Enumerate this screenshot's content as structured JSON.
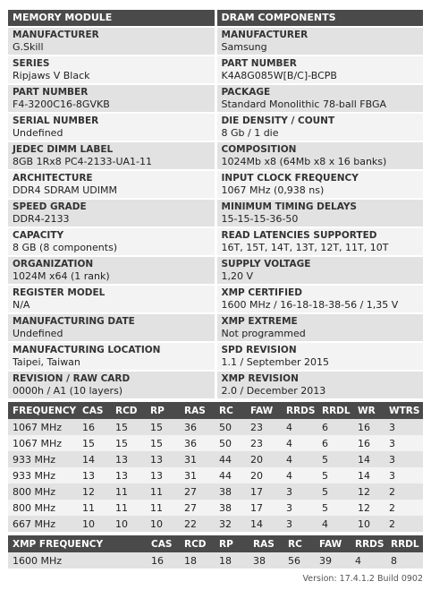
{
  "left_header": "MEMORY MODULE",
  "right_header": "DRAM COMPONENTS",
  "left_items": [
    {
      "label": "MANUFACTURER",
      "value": "G.Skill"
    },
    {
      "label": "SERIES",
      "value": "Ripjaws V Black"
    },
    {
      "label": "PART NUMBER",
      "value": "F4-3200C16-8GVKB"
    },
    {
      "label": "SERIAL NUMBER",
      "value": "Undefined"
    },
    {
      "label": "JEDEC DIMM LABEL",
      "value": "8GB 1Rx8 PC4-2133-UA1-11"
    },
    {
      "label": "ARCHITECTURE",
      "value": "DDR4 SDRAM UDIMM"
    },
    {
      "label": "SPEED GRADE",
      "value": "DDR4-2133"
    },
    {
      "label": "CAPACITY",
      "value": "8 GB (8 components)"
    },
    {
      "label": "ORGANIZATION",
      "value": "1024M x64 (1 rank)"
    },
    {
      "label": "REGISTER MODEL",
      "value": "N/A"
    },
    {
      "label": "MANUFACTURING DATE",
      "value": "Undefined"
    },
    {
      "label": "MANUFACTURING LOCATION",
      "value": "Taipei, Taiwan"
    },
    {
      "label": "REVISION / RAW CARD",
      "value": "0000h / A1 (10 layers)"
    }
  ],
  "right_items": [
    {
      "label": "MANUFACTURER",
      "value": "Samsung"
    },
    {
      "label": "PART NUMBER",
      "value": "K4A8G085W[B/C]-BCPB"
    },
    {
      "label": "PACKAGE",
      "value": "Standard Monolithic 78-ball FBGA"
    },
    {
      "label": "DIE DENSITY / COUNT",
      "value": "8 Gb / 1 die"
    },
    {
      "label": "COMPOSITION",
      "value": "1024Mb x8 (64Mb x8 x 16 banks)"
    },
    {
      "label": "INPUT CLOCK FREQUENCY",
      "value": "1067 MHz (0,938 ns)"
    },
    {
      "label": "MINIMUM TIMING DELAYS",
      "value": "15-15-15-36-50"
    },
    {
      "label": "READ LATENCIES SUPPORTED",
      "value": "16T, 15T, 14T, 13T, 12T, 11T, 10T"
    },
    {
      "label": "SUPPLY VOLTAGE",
      "value": "1,20 V"
    },
    {
      "label": "XMP CERTIFIED",
      "value": "1600 MHz / 16-18-18-38-56 / 1,35 V"
    },
    {
      "label": "XMP EXTREME",
      "value": "Not programmed"
    },
    {
      "label": "SPD REVISION",
      "value": "1.1 / September 2015"
    },
    {
      "label": "XMP REVISION",
      "value": "2.0 / December 2013"
    }
  ],
  "timing_table": {
    "headers": [
      "FREQUENCY",
      "CAS",
      "RCD",
      "RP",
      "RAS",
      "RC",
      "FAW",
      "RRDS",
      "RRDL",
      "WR",
      "WTRS"
    ],
    "rows": [
      [
        "1067 MHz",
        "16",
        "15",
        "15",
        "36",
        "50",
        "23",
        "4",
        "6",
        "16",
        "3"
      ],
      [
        "1067 MHz",
        "15",
        "15",
        "15",
        "36",
        "50",
        "23",
        "4",
        "6",
        "16",
        "3"
      ],
      [
        "933 MHz",
        "14",
        "13",
        "13",
        "31",
        "44",
        "20",
        "4",
        "5",
        "14",
        "3"
      ],
      [
        "933 MHz",
        "13",
        "13",
        "13",
        "31",
        "44",
        "20",
        "4",
        "5",
        "14",
        "3"
      ],
      [
        "800 MHz",
        "12",
        "11",
        "11",
        "27",
        "38",
        "17",
        "3",
        "5",
        "12",
        "2"
      ],
      [
        "800 MHz",
        "11",
        "11",
        "11",
        "27",
        "38",
        "17",
        "3",
        "5",
        "12",
        "2"
      ],
      [
        "667 MHz",
        "10",
        "10",
        "10",
        "22",
        "32",
        "14",
        "3",
        "4",
        "10",
        "2"
      ]
    ]
  },
  "xmp_table": {
    "headers": [
      "XMP FREQUENCY",
      "CAS",
      "RCD",
      "RP",
      "RAS",
      "RC",
      "FAW",
      "RRDS",
      "RRDL"
    ],
    "rows": [
      [
        "1600 MHz",
        "16",
        "18",
        "18",
        "38",
        "56",
        "39",
        "4",
        "8"
      ]
    ]
  },
  "version": "Version: 17.4.1.2 Build 0902"
}
